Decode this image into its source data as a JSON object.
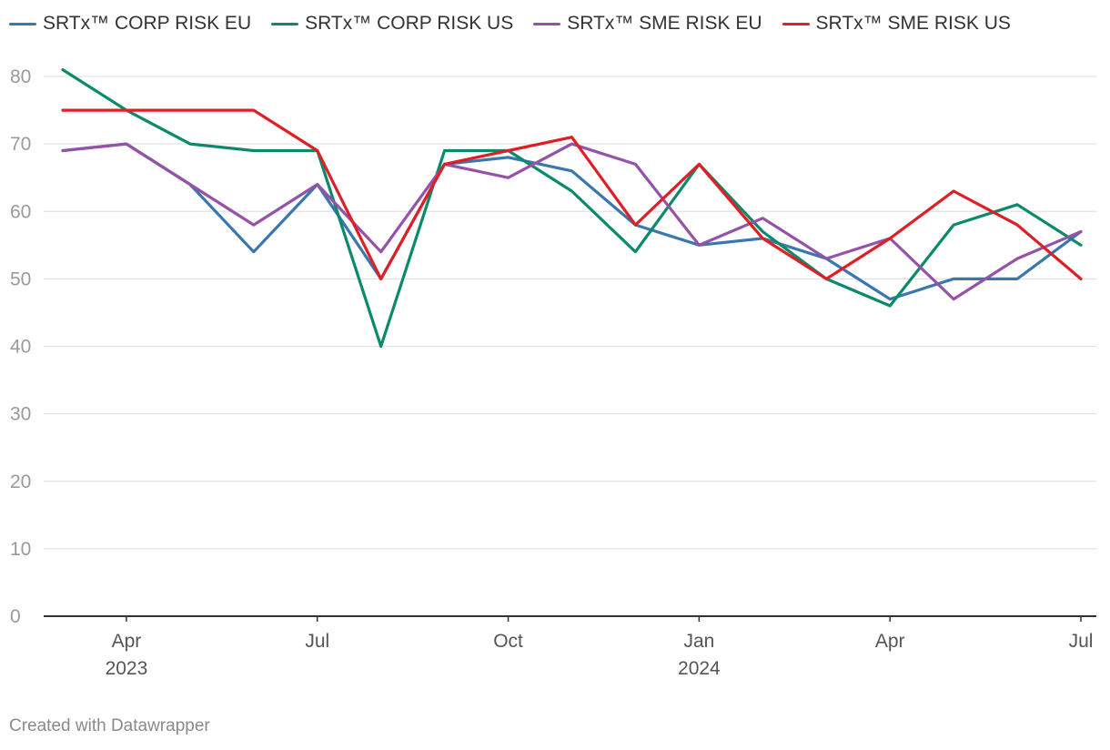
{
  "chart_data": {
    "type": "line",
    "x": [
      "2023-03",
      "2023-04",
      "2023-05",
      "2023-06",
      "2023-07",
      "2023-08",
      "2023-09",
      "2023-10",
      "2023-11",
      "2023-12",
      "2024-01",
      "2024-02",
      "2024-03",
      "2024-04",
      "2024-05",
      "2024-06",
      "2024-07"
    ],
    "series": [
      {
        "name": "SRTx™ CORP RISK EU",
        "color": "#3a76af",
        "values": [
          69,
          70,
          64,
          54,
          64,
          50,
          67,
          68,
          66,
          58,
          55,
          56,
          53,
          47,
          50,
          50,
          57
        ]
      },
      {
        "name": "SRTx™ CORP RISK US",
        "color": "#0a8a6b",
        "values": [
          81,
          75,
          70,
          69,
          69,
          40,
          69,
          69,
          63,
          54,
          67,
          57,
          50,
          46,
          58,
          61,
          55
        ]
      },
      {
        "name": "SRTx™ SME RISK EU",
        "color": "#9552a8",
        "values": [
          69,
          70,
          64,
          58,
          64,
          54,
          67,
          65,
          70,
          67,
          55,
          59,
          53,
          56,
          47,
          53,
          57
        ]
      },
      {
        "name": "SRTx™ SME RISK US",
        "color": "#de1f26",
        "values": [
          75,
          75,
          75,
          75,
          69,
          50,
          67,
          69,
          71,
          58,
          67,
          56,
          50,
          56,
          63,
          58,
          50
        ]
      }
    ],
    "ylim": [
      0,
      80
    ],
    "yticks": [
      "0",
      "10",
      "20",
      "30",
      "40",
      "50",
      "60",
      "70",
      "80"
    ],
    "xticks": [
      {
        "index": 1,
        "label": "Apr",
        "sublabel": "2023"
      },
      {
        "index": 4,
        "label": "Jul",
        "sublabel": ""
      },
      {
        "index": 7,
        "label": "Oct",
        "sublabel": ""
      },
      {
        "index": 10,
        "label": "Jan",
        "sublabel": "2024"
      },
      {
        "index": 13,
        "label": "Apr",
        "sublabel": ""
      },
      {
        "index": 16,
        "label": "Jul",
        "sublabel": ""
      }
    ],
    "grid": true,
    "legend_position": "top-left"
  },
  "footer": {
    "credit": "Created with Datawrapper"
  }
}
